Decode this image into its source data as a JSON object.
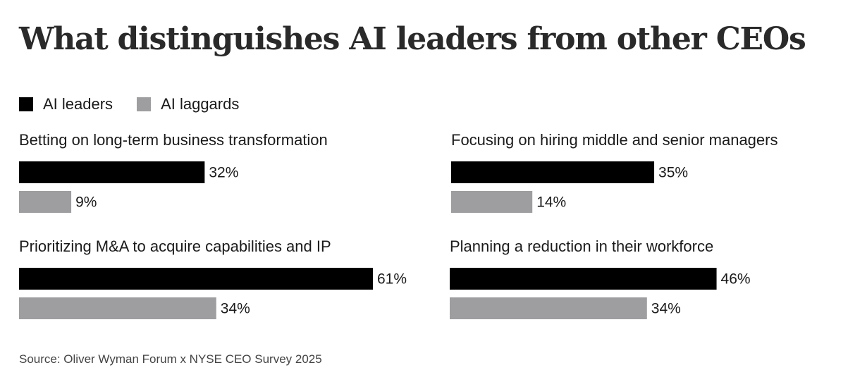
{
  "title": "What distinguishes AI leaders from other CEOs",
  "legend": [
    {
      "label": "AI leaders",
      "color": "#000000"
    },
    {
      "label": "AI laggards",
      "color": "#9e9ea1"
    }
  ],
  "chart_data": {
    "type": "bar",
    "title": "What distinguishes AI leaders from other CEOs",
    "value_suffix": "%",
    "xlim": [
      0,
      61
    ],
    "series_names": [
      "AI leaders",
      "AI laggards"
    ],
    "panels": [
      {
        "title": "Betting on long-term business transformation",
        "values": [
          32,
          9
        ],
        "labels": [
          "32%",
          "9%"
        ]
      },
      {
        "title": "Focusing on hiring middle and senior managers",
        "values": [
          35,
          14
        ],
        "labels": [
          "35%",
          "14%"
        ]
      },
      {
        "title": "Prioritizing M&A to acquire capabilities and IP",
        "values": [
          61,
          34
        ],
        "labels": [
          "61%",
          "34%"
        ]
      },
      {
        "title": "Planning a reduction in their workforce",
        "values": [
          46,
          34
        ],
        "labels": [
          "46%",
          "34%"
        ]
      }
    ]
  },
  "source": "Source: Oliver Wyman Forum x NYSE CEO Survey 2025"
}
